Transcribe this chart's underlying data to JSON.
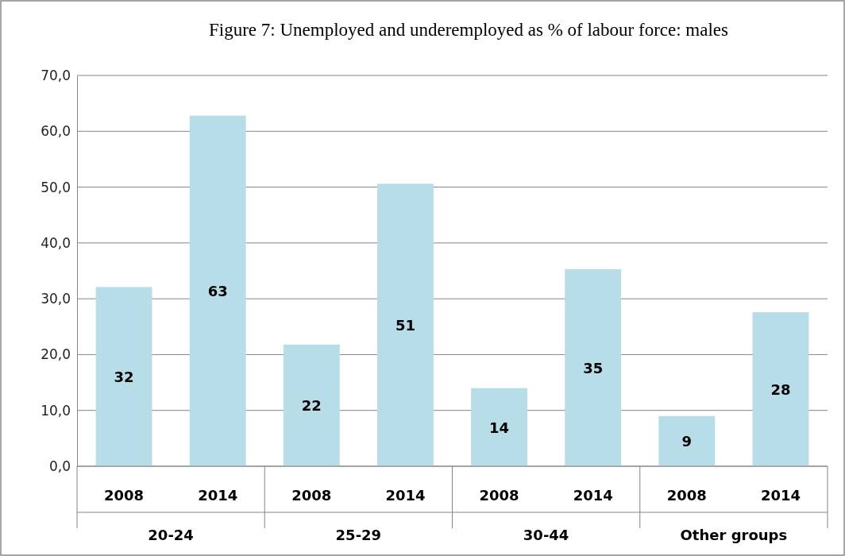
{
  "chart_data": {
    "type": "bar",
    "title": "Figure 7: Unemployed and underemployed as % of labour force: males",
    "categories": [
      "2008",
      "2014",
      "2008",
      "2014",
      "2008",
      "2014",
      "2008",
      "2014"
    ],
    "values": [
      32.1,
      62.8,
      21.8,
      50.6,
      14.0,
      35.3,
      9.0,
      27.6
    ],
    "value_labels": [
      "32",
      "63",
      "22",
      "51",
      "14",
      "35",
      "9",
      "28"
    ],
    "color": "#b7dde8",
    "ylim": [
      0,
      70
    ],
    "yticks": [
      {
        "value": 0,
        "label": "0,0"
      },
      {
        "value": 10,
        "label": "10,0"
      },
      {
        "value": 20,
        "label": "20,0"
      },
      {
        "value": 30,
        "label": "30,0"
      },
      {
        "value": 40,
        "label": "40,0"
      },
      {
        "value": 50,
        "label": "50,0"
      },
      {
        "value": 60,
        "label": "60,0"
      },
      {
        "value": 70,
        "label": "70,0"
      }
    ],
    "grid": "y",
    "annotations": [
      "20-24",
      "25-29",
      "30-44",
      "Other groups"
    ]
  }
}
